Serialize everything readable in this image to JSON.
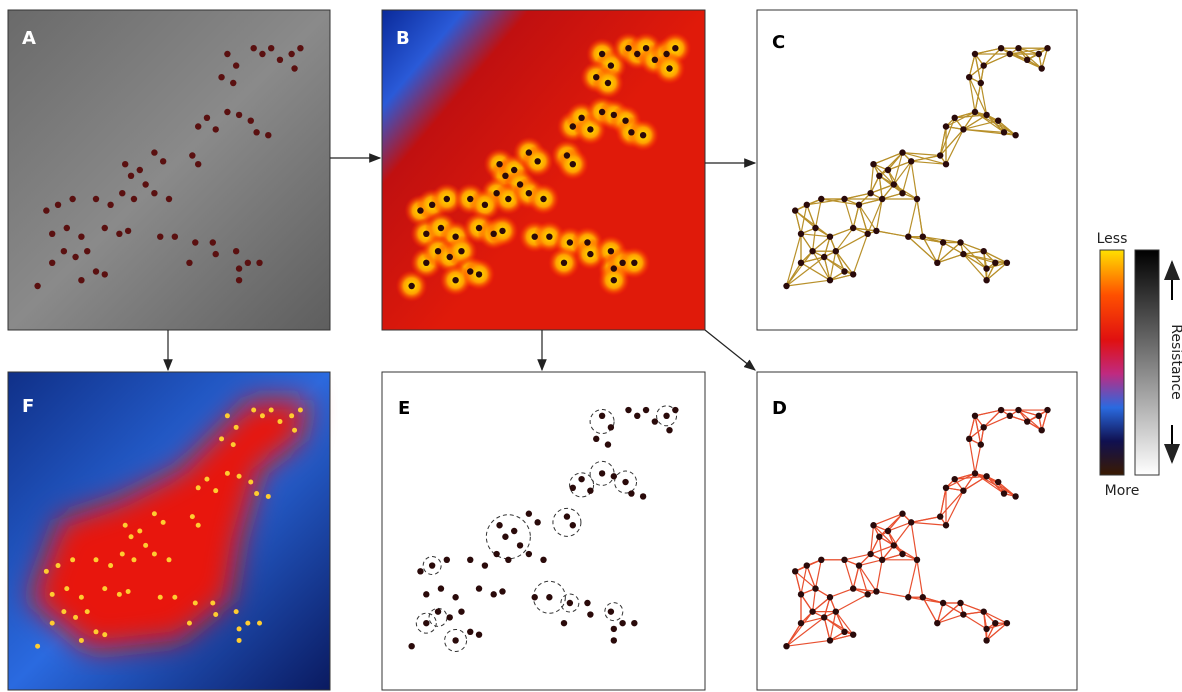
{
  "panels": {
    "a": "A",
    "b": "B",
    "c": "C",
    "d": "D",
    "e": "E",
    "f": "F"
  },
  "legend": {
    "top": "Less",
    "bottom": "More",
    "axis": "Resistance"
  }
}
